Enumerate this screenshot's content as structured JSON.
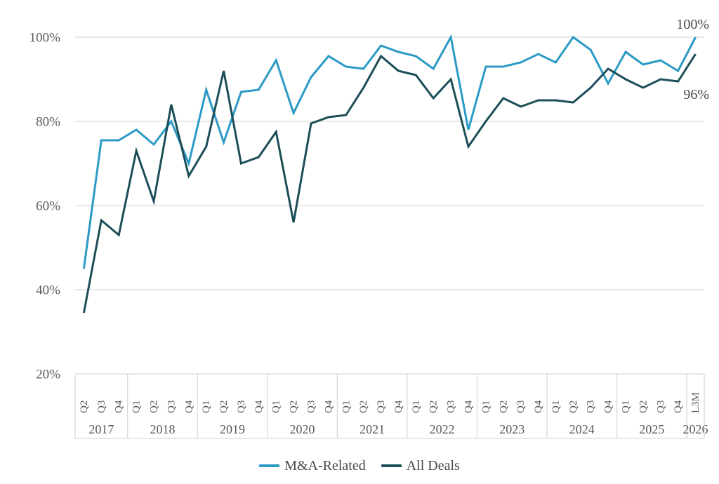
{
  "chart_data": {
    "type": "line",
    "title": "",
    "grid": true,
    "legend_position": "bottom",
    "y_axis": {
      "min": 20,
      "max": 100,
      "step": 20,
      "tick_labels": [
        "20%",
        "40%",
        "60%",
        "80%",
        "100%"
      ]
    },
    "x_groups": [
      {
        "year": "2017",
        "labels": [
          "Q2",
          "Q3",
          "Q4"
        ]
      },
      {
        "year": "2018",
        "labels": [
          "Q1",
          "Q2",
          "Q3",
          "Q4"
        ]
      },
      {
        "year": "2019",
        "labels": [
          "Q1",
          "Q2",
          "Q3",
          "Q4"
        ]
      },
      {
        "year": "2020",
        "labels": [
          "Q1",
          "Q2",
          "Q3",
          "Q4"
        ]
      },
      {
        "year": "2021",
        "labels": [
          "Q1",
          "Q2",
          "Q3",
          "Q4"
        ]
      },
      {
        "year": "2022",
        "labels": [
          "Q1",
          "Q2",
          "Q3",
          "Q4"
        ]
      },
      {
        "year": "2023",
        "labels": [
          "Q1",
          "Q2",
          "Q3",
          "Q4"
        ]
      },
      {
        "year": "2024",
        "labels": [
          "Q1",
          "Q2",
          "Q3",
          "Q4"
        ]
      },
      {
        "year": "2025",
        "labels": [
          "Q1",
          "Q2",
          "Q3",
          "Q4"
        ]
      },
      {
        "year": "2026",
        "labels": [
          "L3M"
        ]
      }
    ],
    "series": [
      {
        "name": "M&A-Related",
        "color": "#2B9AC5",
        "values": [
          45,
          75.5,
          75.5,
          78,
          74.5,
          80,
          70,
          87.5,
          75,
          87,
          87.5,
          94.5,
          82,
          90.5,
          95.5,
          93,
          92.5,
          98,
          96.5,
          95.5,
          92.5,
          100,
          78,
          93,
          93,
          94,
          96,
          94,
          100,
          97,
          89,
          96.5,
          93.5,
          94.5,
          92,
          100
        ]
      },
      {
        "name": "All Deals",
        "color": "#1C4E58",
        "values": [
          34.5,
          56.5,
          53,
          73,
          61,
          84,
          67,
          74,
          92,
          70,
          71.5,
          77.5,
          56,
          79.5,
          81,
          81.5,
          88,
          95.5,
          92,
          91,
          85.5,
          90,
          74,
          80,
          85.5,
          83.5,
          85,
          85,
          84.5,
          88,
          92.5,
          90,
          88,
          90,
          89.5,
          96
        ]
      }
    ],
    "end_labels": [
      {
        "text": "100%",
        "series": "M&A-Related"
      },
      {
        "text": "96%",
        "series": "All Deals"
      }
    ],
    "legend": [
      "M&A-Related",
      "All Deals"
    ]
  },
  "styles": {
    "grid_color": "#D9D9D9",
    "axis_text_color": "#595959",
    "annotation_color": "#454545",
    "background": "#FFFFFF"
  }
}
